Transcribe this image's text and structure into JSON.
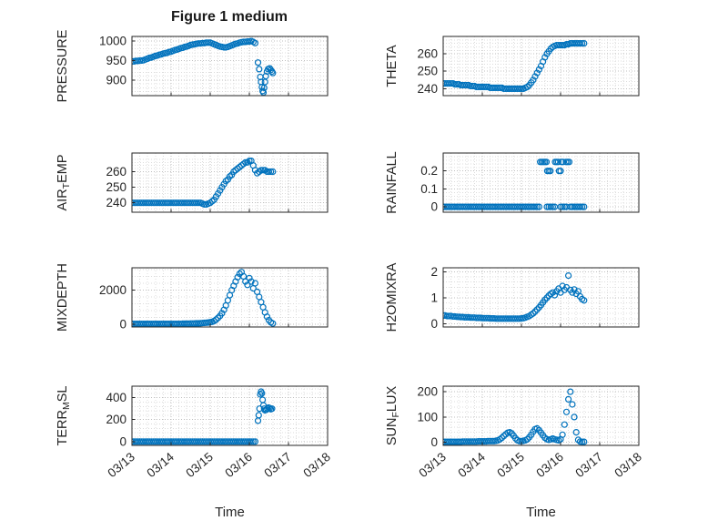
{
  "figure": {
    "title": "Figure 1 medium"
  },
  "axes": {
    "xlabel": "Time",
    "xticks": [
      0,
      1,
      2,
      3,
      4,
      5
    ],
    "xtick_labels": [
      "03/13",
      "03/14",
      "03/15",
      "03/16",
      "03/17",
      "03/18"
    ],
    "xlim": [
      0,
      5
    ]
  },
  "style": {
    "marker_color": "#0072BD",
    "axis_color": "#262626",
    "grid_major": "#bfbfbf",
    "grid_minor": "#dcdcdc",
    "label_color": "#262626"
  },
  "chart_data": [
    {
      "type": "scatter",
      "name": "pressure",
      "ylabel": "PRESSURE",
      "ylabel_parts": [
        {
          "t": "PRESSURE"
        }
      ],
      "col": 0,
      "row": 0,
      "yticks": [
        900,
        950,
        1000
      ],
      "ylim": [
        860,
        1012
      ],
      "x": [
        0,
        0.05,
        0.1,
        0.15,
        0.2,
        0.25,
        0.3,
        0.35,
        0.4,
        0.45,
        0.5,
        0.55,
        0.6,
        0.65,
        0.7,
        0.75,
        0.8,
        0.85,
        0.9,
        0.95,
        1,
        1.05,
        1.1,
        1.15,
        1.2,
        1.25,
        1.3,
        1.35,
        1.4,
        1.45,
        1.5,
        1.55,
        1.6,
        1.65,
        1.7,
        1.75,
        1.8,
        1.85,
        1.9,
        1.95,
        2,
        2.05,
        2.1,
        2.15,
        2.2,
        2.25,
        2.3,
        2.35,
        2.4,
        2.45,
        2.5,
        2.55,
        2.6,
        2.65,
        2.7,
        2.75,
        2.8,
        2.85,
        2.9,
        2.95,
        3,
        3.05,
        3.1,
        3.15,
        3.22,
        3.25,
        3.28,
        3.3,
        3.32,
        3.34,
        3.36,
        3.38,
        3.4,
        3.42,
        3.45,
        3.48,
        3.52,
        3.55,
        3.58,
        3.6
      ],
      "y": [
        948,
        948,
        949,
        949,
        950,
        950,
        951,
        953,
        955,
        957,
        958,
        960,
        962,
        963,
        965,
        966,
        968,
        969,
        970,
        972,
        973,
        975,
        977,
        978,
        980,
        982,
        983,
        985,
        986,
        988,
        990,
        991,
        992,
        993,
        994,
        994,
        995,
        995,
        996,
        996,
        996,
        994,
        992,
        990,
        988,
        986,
        985,
        984,
        984,
        985,
        987,
        989,
        991,
        993,
        994,
        996,
        997,
        998,
        998,
        999,
        999,
        1000,
        998,
        995,
        945,
        928,
        908,
        895,
        882,
        872,
        868,
        880,
        895,
        910,
        922,
        928,
        930,
        926,
        922,
        918
      ]
    },
    {
      "type": "scatter",
      "name": "theta",
      "ylabel": "THETA",
      "ylabel_parts": [
        {
          "t": "THETA"
        }
      ],
      "col": 1,
      "row": 0,
      "yticks": [
        240,
        250,
        260
      ],
      "ylim": [
        236,
        270
      ],
      "x": [
        0,
        0.05,
        0.1,
        0.15,
        0.2,
        0.25,
        0.3,
        0.35,
        0.4,
        0.45,
        0.5,
        0.55,
        0.6,
        0.65,
        0.7,
        0.75,
        0.8,
        0.85,
        0.9,
        0.95,
        1,
        1.05,
        1.1,
        1.15,
        1.2,
        1.25,
        1.3,
        1.35,
        1.4,
        1.45,
        1.5,
        1.55,
        1.6,
        1.65,
        1.7,
        1.75,
        1.8,
        1.85,
        1.9,
        1.95,
        2,
        2.05,
        2.1,
        2.15,
        2.2,
        2.25,
        2.3,
        2.35,
        2.4,
        2.45,
        2.5,
        2.55,
        2.6,
        2.65,
        2.7,
        2.75,
        2.8,
        2.85,
        2.9,
        2.95,
        3,
        3.05,
        3.1,
        3.15,
        3.2,
        3.25,
        3.3,
        3.35,
        3.4,
        3.45,
        3.5,
        3.55,
        3.6
      ],
      "y": [
        243,
        243,
        243,
        243,
        243,
        243,
        242.5,
        242.5,
        242.5,
        242,
        242,
        242,
        242,
        242,
        241.5,
        241.5,
        241.5,
        241,
        241,
        241,
        241,
        241,
        241,
        241,
        240.5,
        240.5,
        240.5,
        240.5,
        240.5,
        240.5,
        240.5,
        240,
        240,
        240,
        240,
        240,
        240,
        240,
        240,
        240,
        240,
        240,
        240.5,
        241,
        242,
        243.5,
        245,
        247,
        249,
        251,
        253,
        255.5,
        258,
        260,
        261.5,
        263,
        264,
        264.5,
        265,
        265,
        265,
        265,
        265,
        265.5,
        265.5,
        266,
        266,
        266,
        266,
        266,
        266,
        266,
        266
      ]
    },
    {
      "type": "scatter",
      "name": "air_temp",
      "ylabel": "AIR_TEMP",
      "ylabel_parts": [
        {
          "t": "AIR"
        },
        {
          "t": "T",
          "sub": true
        },
        {
          "t": "EMP"
        }
      ],
      "col": 0,
      "row": 1,
      "yticks": [
        240,
        250,
        260
      ],
      "ylim": [
        234,
        272
      ],
      "x": [
        0,
        0.05,
        0.1,
        0.15,
        0.2,
        0.25,
        0.3,
        0.35,
        0.4,
        0.45,
        0.5,
        0.55,
        0.6,
        0.65,
        0.7,
        0.75,
        0.8,
        0.85,
        0.9,
        0.95,
        1,
        1.05,
        1.1,
        1.15,
        1.2,
        1.25,
        1.3,
        1.35,
        1.4,
        1.45,
        1.5,
        1.55,
        1.6,
        1.65,
        1.7,
        1.75,
        1.8,
        1.85,
        1.9,
        1.95,
        2,
        2.05,
        2.1,
        2.15,
        2.2,
        2.25,
        2.3,
        2.35,
        2.4,
        2.45,
        2.5,
        2.55,
        2.6,
        2.65,
        2.7,
        2.75,
        2.8,
        2.85,
        2.9,
        2.95,
        3,
        3.05,
        3.1,
        3.15,
        3.2,
        3.25,
        3.3,
        3.35,
        3.4,
        3.45,
        3.5,
        3.55,
        3.6
      ],
      "y": [
        240,
        240,
        240,
        240,
        240,
        240,
        240,
        240,
        240,
        240,
        240,
        240,
        240,
        240,
        240,
        240,
        240,
        240,
        240,
        240,
        240,
        240,
        240,
        240,
        240,
        240,
        240,
        240,
        240,
        240,
        240,
        240,
        240,
        240,
        240,
        240,
        239.5,
        239,
        239,
        239.5,
        240,
        241,
        242,
        244,
        246,
        248,
        250,
        252,
        254,
        255,
        257,
        258,
        260,
        261,
        262,
        263,
        264,
        265,
        266,
        266,
        267,
        267,
        264,
        261,
        259,
        260,
        261,
        261,
        261,
        260,
        260,
        260,
        260
      ]
    },
    {
      "type": "scatter",
      "name": "rainfall",
      "ylabel": "RAINFALL",
      "ylabel_parts": [
        {
          "t": "RAINFALL"
        }
      ],
      "col": 1,
      "row": 1,
      "yticks": [
        0,
        0.1,
        0.2
      ],
      "ylim": [
        -0.03,
        0.3
      ],
      "x": [
        0,
        0.05,
        0.1,
        0.15,
        0.2,
        0.25,
        0.3,
        0.35,
        0.4,
        0.45,
        0.5,
        0.55,
        0.6,
        0.65,
        0.7,
        0.75,
        0.8,
        0.85,
        0.9,
        0.95,
        1,
        1.05,
        1.1,
        1.15,
        1.2,
        1.25,
        1.3,
        1.35,
        1.4,
        1.45,
        1.5,
        1.55,
        1.6,
        1.65,
        1.7,
        1.75,
        1.8,
        1.85,
        1.9,
        1.95,
        2,
        2.05,
        2.1,
        2.15,
        2.2,
        2.25,
        2.3,
        2.35,
        2.4,
        2.45,
        2.65,
        2.7,
        2.75,
        2.8,
        2.85,
        3,
        3.05,
        3.1,
        3.15,
        3.25,
        3.3,
        3.35,
        3.4,
        3.45,
        3.5,
        3.55,
        3.6,
        2.48,
        2.52,
        2.56,
        2.6,
        2.64,
        2.86,
        2.9,
        2.94,
        3.02,
        3.06,
        3.14,
        3.18,
        3.22,
        2.66,
        2.7,
        2.74,
        2.96,
        3
      ],
      "y": [
        0,
        0,
        0,
        0,
        0,
        0,
        0,
        0,
        0,
        0,
        0,
        0,
        0,
        0,
        0,
        0,
        0,
        0,
        0,
        0,
        0,
        0,
        0,
        0,
        0,
        0,
        0,
        0,
        0,
        0,
        0,
        0,
        0,
        0,
        0,
        0,
        0,
        0,
        0,
        0,
        0,
        0,
        0,
        0,
        0,
        0,
        0,
        0,
        0,
        0,
        0,
        0,
        0,
        0,
        0,
        0,
        0,
        0,
        0,
        0,
        0,
        0,
        0,
        0,
        0,
        0,
        0,
        0.25,
        0.25,
        0.25,
        0.25,
        0.25,
        0.25,
        0.25,
        0.25,
        0.25,
        0.25,
        0.25,
        0.25,
        0.25,
        0.2,
        0.2,
        0.2,
        0.2,
        0.2
      ]
    },
    {
      "type": "scatter",
      "name": "mixdepth",
      "ylabel": "MIXDEPTH",
      "ylabel_parts": [
        {
          "t": "MIXDEPTH"
        }
      ],
      "col": 0,
      "row": 2,
      "yticks": [
        0,
        2000
      ],
      "ylim": [
        -150,
        3300
      ],
      "x": [
        0,
        0.05,
        0.1,
        0.15,
        0.2,
        0.25,
        0.3,
        0.35,
        0.4,
        0.45,
        0.5,
        0.55,
        0.6,
        0.65,
        0.7,
        0.75,
        0.8,
        0.85,
        0.9,
        0.95,
        1,
        1.05,
        1.1,
        1.15,
        1.2,
        1.25,
        1.3,
        1.35,
        1.4,
        1.45,
        1.5,
        1.55,
        1.6,
        1.65,
        1.7,
        1.75,
        1.8,
        1.85,
        1.9,
        1.95,
        2,
        2.05,
        2.1,
        2.15,
        2.2,
        2.25,
        2.3,
        2.35,
        2.4,
        2.45,
        2.5,
        2.55,
        2.6,
        2.65,
        2.7,
        2.75,
        2.8,
        2.85,
        2.9,
        2.95,
        3,
        3.05,
        3.1,
        3.15,
        3.2,
        3.25,
        3.3,
        3.35,
        3.4,
        3.45,
        3.5,
        3.55,
        3.6
      ],
      "y": [
        30,
        30,
        30,
        30,
        30,
        30,
        30,
        30,
        30,
        30,
        30,
        30,
        30,
        30,
        30,
        30,
        30,
        30,
        30,
        30,
        30,
        30,
        30,
        30,
        30,
        30,
        40,
        40,
        40,
        40,
        50,
        50,
        50,
        60,
        60,
        70,
        80,
        90,
        100,
        110,
        130,
        150,
        200,
        280,
        380,
        500,
        650,
        850,
        1100,
        1400,
        1700,
        2000,
        2250,
        2500,
        2750,
        2950,
        3050,
        2800,
        2500,
        2300,
        2700,
        2500,
        2100,
        2400,
        1900,
        1600,
        1300,
        1000,
        700,
        450,
        250,
        120,
        50
      ]
    },
    {
      "type": "scatter",
      "name": "h2omixra",
      "ylabel": "H2OMIXRA",
      "ylabel_parts": [
        {
          "t": "H2OMIXRA"
        }
      ],
      "col": 1,
      "row": 2,
      "yticks": [
        0,
        1,
        2
      ],
      "ylim": [
        -0.12,
        2.15
      ],
      "x": [
        0,
        0.05,
        0.1,
        0.15,
        0.2,
        0.25,
        0.3,
        0.35,
        0.4,
        0.45,
        0.5,
        0.55,
        0.6,
        0.65,
        0.7,
        0.75,
        0.8,
        0.85,
        0.9,
        0.95,
        1,
        1.05,
        1.1,
        1.15,
        1.2,
        1.25,
        1.3,
        1.35,
        1.4,
        1.45,
        1.5,
        1.55,
        1.6,
        1.65,
        1.7,
        1.75,
        1.8,
        1.85,
        1.9,
        1.95,
        2,
        2.05,
        2.1,
        2.15,
        2.2,
        2.25,
        2.3,
        2.35,
        2.4,
        2.45,
        2.5,
        2.55,
        2.6,
        2.65,
        2.7,
        2.75,
        2.8,
        2.85,
        2.9,
        2.95,
        3,
        3.05,
        3.1,
        3.15,
        3.2,
        3.25,
        3.3,
        3.35,
        3.4,
        3.45,
        3.5,
        3.55,
        3.6
      ],
      "y": [
        0.32,
        0.32,
        0.3,
        0.3,
        0.3,
        0.28,
        0.28,
        0.27,
        0.27,
        0.26,
        0.26,
        0.25,
        0.25,
        0.25,
        0.24,
        0.24,
        0.24,
        0.23,
        0.23,
        0.23,
        0.22,
        0.22,
        0.22,
        0.22,
        0.21,
        0.21,
        0.21,
        0.2,
        0.2,
        0.2,
        0.2,
        0.2,
        0.2,
        0.2,
        0.2,
        0.2,
        0.2,
        0.2,
        0.2,
        0.2,
        0.21,
        0.22,
        0.24,
        0.27,
        0.3,
        0.35,
        0.4,
        0.47,
        0.55,
        0.63,
        0.72,
        0.82,
        0.92,
        1,
        1.08,
        1.15,
        1.2,
        1.1,
        1.25,
        1.35,
        1.2,
        1.45,
        1.3,
        1.4,
        1.85,
        1.3,
        1.2,
        1.32,
        1.15,
        1.25,
        1.05,
        0.95,
        0.9
      ]
    },
    {
      "type": "scatter",
      "name": "terr_msl",
      "ylabel": "TERR_MSL",
      "ylabel_parts": [
        {
          "t": "TERR"
        },
        {
          "t": "M",
          "sub": true
        },
        {
          "t": "SL"
        }
      ],
      "col": 0,
      "row": 3,
      "yticks": [
        0,
        200,
        400
      ],
      "ylim": [
        -35,
        505
      ],
      "x": [
        0,
        0.05,
        0.1,
        0.15,
        0.2,
        0.25,
        0.3,
        0.35,
        0.4,
        0.45,
        0.5,
        0.55,
        0.6,
        0.65,
        0.7,
        0.75,
        0.8,
        0.85,
        0.9,
        0.95,
        1,
        1.05,
        1.1,
        1.15,
        1.2,
        1.25,
        1.3,
        1.35,
        1.4,
        1.45,
        1.5,
        1.55,
        1.6,
        1.65,
        1.7,
        1.75,
        1.8,
        1.85,
        1.9,
        1.95,
        2,
        2.05,
        2.1,
        2.15,
        2.2,
        2.25,
        2.3,
        2.35,
        2.4,
        2.45,
        2.5,
        2.55,
        2.6,
        2.65,
        2.7,
        2.75,
        2.8,
        2.85,
        2.9,
        2.95,
        3,
        3.05,
        3.1,
        3.15,
        3.22,
        3.24,
        3.26,
        3.28,
        3.3,
        3.32,
        3.34,
        3.36,
        3.38,
        3.4,
        3.43,
        3.46,
        3.49,
        3.52,
        3.55,
        3.58
      ],
      "y": [
        0,
        0,
        0,
        0,
        0,
        0,
        0,
        0,
        0,
        0,
        0,
        0,
        0,
        0,
        0,
        0,
        0,
        0,
        0,
        0,
        0,
        0,
        0,
        0,
        0,
        0,
        0,
        0,
        0,
        0,
        0,
        0,
        0,
        0,
        0,
        0,
        0,
        0,
        0,
        0,
        0,
        0,
        0,
        0,
        0,
        0,
        0,
        0,
        0,
        0,
        0,
        0,
        0,
        0,
        0,
        0,
        0,
        0,
        0,
        0,
        0,
        0,
        0,
        0,
        190,
        240,
        300,
        430,
        455,
        440,
        380,
        330,
        300,
        285,
        290,
        300,
        310,
        305,
        295,
        300
      ]
    },
    {
      "type": "scatter",
      "name": "sun_flux",
      "ylabel": "SUN_FLUX",
      "ylabel_parts": [
        {
          "t": "SUN"
        },
        {
          "t": "F",
          "sub": true
        },
        {
          "t": "LUX"
        }
      ],
      "col": 1,
      "row": 3,
      "yticks": [
        0,
        100,
        200
      ],
      "ylim": [
        -12,
        222
      ],
      "x": [
        0,
        0.05,
        0.1,
        0.15,
        0.2,
        0.25,
        0.3,
        0.35,
        0.4,
        0.45,
        0.5,
        0.55,
        0.6,
        0.65,
        0.7,
        0.75,
        0.8,
        0.85,
        0.9,
        0.95,
        1,
        1.05,
        1.1,
        1.15,
        1.2,
        1.25,
        1.3,
        1.35,
        1.4,
        1.45,
        1.5,
        1.55,
        1.6,
        1.65,
        1.7,
        1.75,
        1.8,
        1.85,
        1.9,
        1.95,
        2,
        2.05,
        2.1,
        2.15,
        2.2,
        2.25,
        2.3,
        2.35,
        2.4,
        2.45,
        2.5,
        2.55,
        2.6,
        2.65,
        2.7,
        2.75,
        2.8,
        2.85,
        2.9,
        2.95,
        3,
        3.05,
        3.1,
        3.15,
        3.2,
        3.25,
        3.3,
        3.35,
        3.4,
        3.45,
        3.5,
        3.55,
        3.6
      ],
      "y": [
        2,
        2,
        2,
        2,
        2,
        2,
        2,
        2,
        2,
        2,
        3,
        3,
        3,
        3,
        3,
        3,
        3,
        3,
        4,
        4,
        4,
        4,
        4,
        5,
        5,
        5,
        5,
        6,
        8,
        12,
        18,
        25,
        32,
        38,
        40,
        35,
        26,
        16,
        8,
        5,
        5,
        6,
        8,
        12,
        20,
        30,
        42,
        52,
        55,
        48,
        38,
        28,
        18,
        12,
        10,
        12,
        15,
        12,
        10,
        8,
        12,
        30,
        70,
        120,
        170,
        200,
        150,
        100,
        40,
        10,
        3,
        2,
        2
      ]
    }
  ]
}
